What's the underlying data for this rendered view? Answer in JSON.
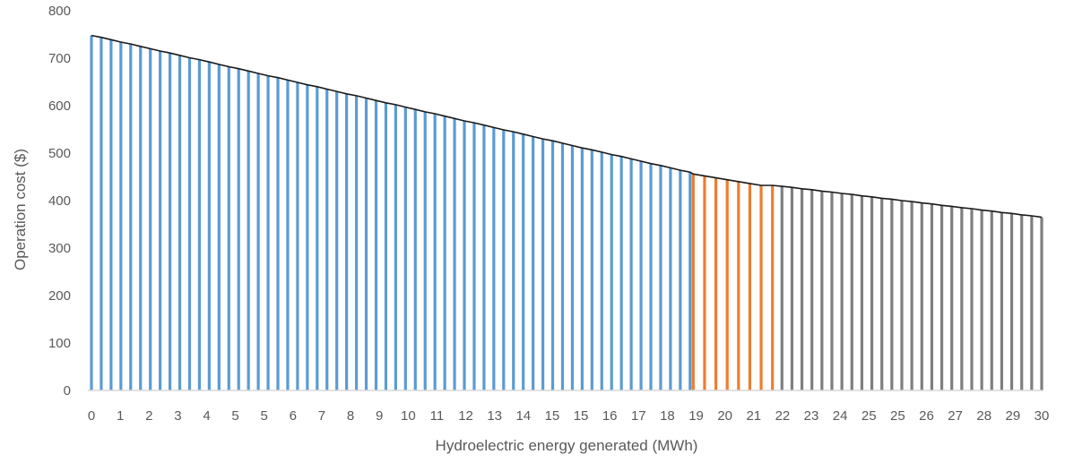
{
  "chart_data": {
    "type": "bar",
    "title": "",
    "xlabel": "Hydroelectric energy generated (MWh)",
    "ylabel": "Operation cost ($)",
    "ylim": [
      0,
      800
    ],
    "yticks": [
      0,
      100,
      200,
      300,
      400,
      500,
      600,
      700,
      800
    ],
    "xtick_labels": [
      "0",
      "1",
      "2",
      "3",
      "4",
      "5",
      "5",
      "6",
      "7",
      "8",
      "9",
      "10",
      "11",
      "12",
      "13",
      "14",
      "15",
      "15",
      "16",
      "17",
      "18",
      "19",
      "20",
      "21",
      "22",
      "23",
      "24",
      "25",
      "25",
      "26",
      "27",
      "28",
      "29",
      "30"
    ],
    "x_range": [
      0,
      30
    ],
    "grid": false,
    "legend": "none",
    "bar_count": 97,
    "colors": {
      "region_a": "#5b9bd5",
      "region_b": "#ed7d31",
      "region_c": "#7f7f7f",
      "outline": "#1a1a1a",
      "axis": "#d9d9d9"
    },
    "series": [
      {
        "color": "#5b9bd5",
        "x_start": 0,
        "x_end": 18.9,
        "values": [
          748,
          744,
          739,
          734,
          730,
          725,
          720,
          715,
          711,
          706,
          701,
          697,
          692,
          687,
          682,
          678,
          673,
          668,
          663,
          659,
          654,
          649,
          644,
          640,
          635,
          630,
          625,
          621,
          616,
          611,
          606,
          602,
          597,
          592,
          587,
          583,
          578,
          573,
          568,
          564,
          559,
          554,
          549,
          545,
          540,
          535,
          530,
          526,
          521,
          516,
          511,
          507,
          502,
          497,
          493,
          488,
          483,
          478,
          474,
          469,
          464,
          460
        ]
      },
      {
        "color": "#ed7d31",
        "x_start": 19,
        "x_end": 21.5,
        "values": [
          456,
          452,
          448,
          444,
          440,
          436,
          432,
          432
        ]
      },
      {
        "color": "#7f7f7f",
        "x_start": 21.8,
        "x_end": 30,
        "values": [
          430,
          428,
          425,
          423,
          420,
          418,
          415,
          413,
          410,
          408,
          405,
          403,
          400,
          398,
          395,
          393,
          390,
          388,
          385,
          383,
          380,
          378,
          375,
          373,
          370,
          368,
          365
        ]
      }
    ]
  }
}
